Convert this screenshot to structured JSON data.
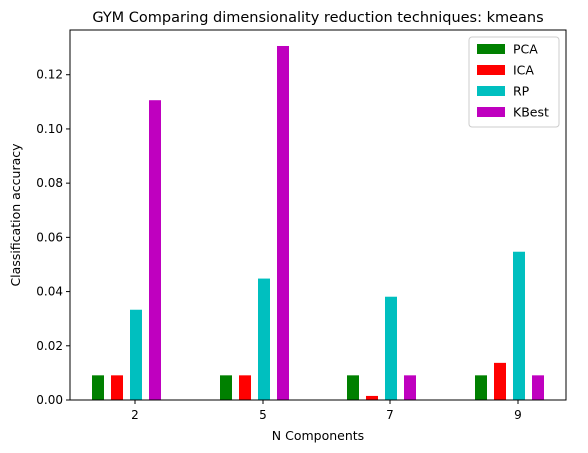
{
  "chart_data": {
    "type": "bar",
    "title": "GYM Comparing dimensionality reduction techniques: kmeans",
    "xlabel": "N Components",
    "ylabel": "Classification accuracy",
    "categories": [
      "2",
      "5",
      "7",
      "9"
    ],
    "ylim": [
      0,
      0.1365
    ],
    "yticks": [
      "0.00",
      "0.02",
      "0.04",
      "0.06",
      "0.08",
      "0.10",
      "0.12"
    ],
    "grid": false,
    "legend_position": "top-right",
    "series": [
      {
        "name": "PCA",
        "color": "#008000",
        "values": [
          0.0091,
          0.0091,
          0.0091,
          0.0091
        ]
      },
      {
        "name": "ICA",
        "color": "#ff0000",
        "values": [
          0.0091,
          0.0091,
          0.0015,
          0.0137
        ]
      },
      {
        "name": "RP",
        "color": "#00bfbf",
        "values": [
          0.0333,
          0.0448,
          0.0381,
          0.0547
        ]
      },
      {
        "name": "KBest",
        "color": "#bf00bf",
        "values": [
          0.1106,
          0.1306,
          0.0091,
          0.0091
        ]
      }
    ]
  }
}
